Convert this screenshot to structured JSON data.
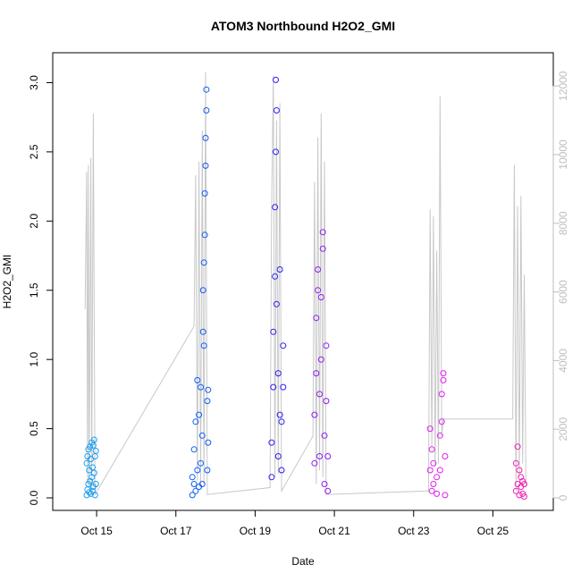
{
  "chart_data": {
    "type": "scatter",
    "title": "ATOM3 Northbound H2O2_GMI",
    "xlabel": "Date",
    "ylabel": "H2O2_GMI",
    "xlim": [
      "2017-10-14T05:00",
      "2017-10-26T05:00"
    ],
    "ylim": [
      0,
      3.1
    ],
    "x_ticks": [
      "Oct 15",
      "Oct 17",
      "Oct 19",
      "Oct 21",
      "Oct 23",
      "Oct 25"
    ],
    "x_tick_values": [
      "2017-10-15",
      "2017-10-17",
      "2017-10-19",
      "2017-10-21",
      "2017-10-23",
      "2017-10-25"
    ],
    "y_ticks": [
      "0.0",
      "0.5",
      "1.0",
      "1.5",
      "2.0",
      "2.5",
      "3.0"
    ],
    "y_tick_values": [
      0,
      0.5,
      1.0,
      1.5,
      2.0,
      2.5,
      3.0
    ],
    "y2_ticks": [
      "0",
      "2000",
      "4000",
      "6000",
      "8000",
      "10000",
      "12000"
    ],
    "y2_tick_values": [
      0,
      2000,
      4000,
      6000,
      8000,
      10000,
      12000
    ],
    "y2lim": [
      0,
      12500
    ],
    "y2_color": "#bebebe",
    "marker": "open-circle",
    "series": [
      {
        "color": "#1e9ff0",
        "points": [
          [
            "2017-10-14T18:00",
            0.02
          ],
          [
            "2017-10-14T18:00",
            0.25
          ],
          [
            "2017-10-14T18:30",
            0.06
          ],
          [
            "2017-10-14T18:30",
            0.3
          ],
          [
            "2017-10-14T19:00",
            0.1
          ],
          [
            "2017-10-14T19:00",
            0.35
          ],
          [
            "2017-10-14T19:30",
            0.04
          ],
          [
            "2017-10-14T19:30",
            0.2
          ],
          [
            "2017-10-14T20:00",
            0.12
          ],
          [
            "2017-10-14T20:00",
            0.37
          ],
          [
            "2017-10-14T20:30",
            0.03
          ],
          [
            "2017-10-14T20:30",
            0.28
          ],
          [
            "2017-10-14T21:00",
            0.15
          ],
          [
            "2017-10-14T21:00",
            0.4
          ],
          [
            "2017-10-14T21:30",
            0.05
          ],
          [
            "2017-10-14T21:30",
            0.22
          ],
          [
            "2017-10-14T22:00",
            0.08
          ],
          [
            "2017-10-14T22:00",
            0.38
          ],
          [
            "2017-10-14T22:30",
            0.18
          ],
          [
            "2017-10-14T22:30",
            0.42
          ],
          [
            "2017-10-14T23:00",
            0.02
          ],
          [
            "2017-10-14T23:00",
            0.3
          ],
          [
            "2017-10-14T23:30",
            0.1
          ],
          [
            "2017-10-14T23:30",
            0.34
          ]
        ]
      },
      {
        "color": "#0f5cf5",
        "points": [
          [
            "2017-10-17T10:00",
            0.02
          ],
          [
            "2017-10-17T10:00",
            0.15
          ],
          [
            "2017-10-17T11:00",
            0.1
          ],
          [
            "2017-10-17T11:00",
            0.35
          ],
          [
            "2017-10-17T12:00",
            0.05
          ],
          [
            "2017-10-17T12:00",
            0.55
          ],
          [
            "2017-10-17T13:00",
            0.2
          ],
          [
            "2017-10-17T13:00",
            0.85
          ],
          [
            "2017-10-17T14:00",
            0.08
          ],
          [
            "2017-10-17T14:00",
            0.6
          ],
          [
            "2017-10-17T15:00",
            0.25
          ],
          [
            "2017-10-17T15:00",
            0.8
          ],
          [
            "2017-10-17T16:00",
            0.1
          ],
          [
            "2017-10-17T16:00",
            0.45
          ],
          [
            "2017-10-17T16:30",
            1.2
          ],
          [
            "2017-10-17T16:30",
            1.5
          ],
          [
            "2017-10-17T17:00",
            1.1
          ],
          [
            "2017-10-17T17:00",
            1.7
          ],
          [
            "2017-10-17T17:30",
            1.9
          ],
          [
            "2017-10-17T17:30",
            2.2
          ],
          [
            "2017-10-17T18:00",
            2.4
          ],
          [
            "2017-10-17T18:00",
            2.6
          ],
          [
            "2017-10-17T18:30",
            2.8
          ],
          [
            "2017-10-17T18:30",
            2.95
          ],
          [
            "2017-10-17T19:00",
            0.2
          ],
          [
            "2017-10-17T19:00",
            0.7
          ],
          [
            "2017-10-17T19:30",
            0.4
          ],
          [
            "2017-10-17T19:30",
            0.78
          ]
        ]
      },
      {
        "color": "#2a1ff2",
        "points": [
          [
            "2017-10-19T10:00",
            0.15
          ],
          [
            "2017-10-19T10:00",
            0.4
          ],
          [
            "2017-10-19T11:00",
            0.8
          ],
          [
            "2017-10-19T11:00",
            1.2
          ],
          [
            "2017-10-19T12:00",
            1.6
          ],
          [
            "2017-10-19T12:00",
            2.1
          ],
          [
            "2017-10-19T12:30",
            2.5
          ],
          [
            "2017-10-19T12:30",
            3.02
          ],
          [
            "2017-10-19T13:00",
            2.8
          ],
          [
            "2017-10-19T13:00",
            1.4
          ],
          [
            "2017-10-19T14:00",
            0.9
          ],
          [
            "2017-10-19T14:00",
            0.3
          ],
          [
            "2017-10-19T15:00",
            0.6
          ],
          [
            "2017-10-19T15:00",
            1.65
          ],
          [
            "2017-10-19T16:00",
            0.2
          ],
          [
            "2017-10-19T16:00",
            0.55
          ],
          [
            "2017-10-19T17:00",
            0.8
          ],
          [
            "2017-10-19T17:00",
            1.1
          ]
        ]
      },
      {
        "color": "#8c1ef0",
        "points": [
          [
            "2017-10-20T12:00",
            0.25
          ],
          [
            "2017-10-20T12:00",
            0.6
          ],
          [
            "2017-10-20T13:00",
            0.9
          ],
          [
            "2017-10-20T13:00",
            1.3
          ],
          [
            "2017-10-20T14:00",
            1.5
          ],
          [
            "2017-10-20T14:00",
            1.65
          ],
          [
            "2017-10-20T15:00",
            0.3
          ],
          [
            "2017-10-20T15:00",
            0.75
          ],
          [
            "2017-10-20T16:00",
            1.0
          ],
          [
            "2017-10-20T16:00",
            1.45
          ],
          [
            "2017-10-20T17:00",
            1.8
          ],
          [
            "2017-10-20T17:00",
            1.92
          ],
          [
            "2017-10-20T18:00",
            0.1
          ],
          [
            "2017-10-20T18:00",
            0.45
          ],
          [
            "2017-10-20T19:00",
            0.7
          ],
          [
            "2017-10-20T19:00",
            1.1
          ],
          [
            "2017-10-20T20:00",
            0.05
          ],
          [
            "2017-10-20T20:00",
            0.3
          ]
        ]
      },
      {
        "color": "#e11ef0",
        "points": [
          [
            "2017-10-23T10:00",
            0.2
          ],
          [
            "2017-10-23T10:00",
            0.5
          ],
          [
            "2017-10-23T11:00",
            0.05
          ],
          [
            "2017-10-23T11:00",
            0.35
          ],
          [
            "2017-10-23T12:00",
            0.1
          ],
          [
            "2017-10-23T12:00",
            0.25
          ],
          [
            "2017-10-23T14:00",
            0.03
          ],
          [
            "2017-10-23T14:00",
            0.15
          ],
          [
            "2017-10-23T16:00",
            0.2
          ],
          [
            "2017-10-23T16:00",
            0.45
          ],
          [
            "2017-10-23T17:00",
            0.55
          ],
          [
            "2017-10-23T17:00",
            0.75
          ],
          [
            "2017-10-23T18:00",
            0.85
          ],
          [
            "2017-10-23T18:00",
            0.9
          ],
          [
            "2017-10-23T19:00",
            0.02
          ],
          [
            "2017-10-23T19:00",
            0.3
          ]
        ]
      },
      {
        "color": "#f21eb4",
        "points": [
          [
            "2017-10-25T14:00",
            0.05
          ],
          [
            "2017-10-25T14:00",
            0.25
          ],
          [
            "2017-10-25T15:00",
            0.1
          ],
          [
            "2017-10-25T15:00",
            0.37
          ],
          [
            "2017-10-25T16:00",
            0.02
          ],
          [
            "2017-10-25T16:00",
            0.2
          ],
          [
            "2017-10-25T17:00",
            0.08
          ],
          [
            "2017-10-25T17:00",
            0.15
          ],
          [
            "2017-10-25T18:00",
            0.03
          ],
          [
            "2017-10-25T18:00",
            0.12
          ],
          [
            "2017-10-25T19:00",
            0.01
          ],
          [
            "2017-10-25T19:00",
            0.1
          ]
        ]
      }
    ],
    "secondary_line": {
      "color": "#c8c8c8",
      "axis": "right",
      "points": [
        [
          "2017-10-14T17:00",
          5500
        ],
        [
          "2017-10-14T18:00",
          9500
        ],
        [
          "2017-10-14T18:30",
          500
        ],
        [
          "2017-10-14T19:00",
          9700
        ],
        [
          "2017-10-14T19:30",
          300
        ],
        [
          "2017-10-14T20:30",
          9900
        ],
        [
          "2017-10-14T21:00",
          200
        ],
        [
          "2017-10-14T22:00",
          11200
        ],
        [
          "2017-10-14T23:00",
          100
        ],
        [
          "2017-10-17T11:00",
          5000
        ],
        [
          "2017-10-17T12:00",
          9400
        ],
        [
          "2017-10-17T13:00",
          500
        ],
        [
          "2017-10-17T14:00",
          9800
        ],
        [
          "2017-10-17T15:00",
          300
        ],
        [
          "2017-10-17T16:00",
          10700
        ],
        [
          "2017-10-17T17:00",
          400
        ],
        [
          "2017-10-17T18:00",
          12400
        ],
        [
          "2017-10-17T19:00",
          100
        ],
        [
          "2017-10-19T09:00",
          300
        ],
        [
          "2017-10-19T10:00",
          8500
        ],
        [
          "2017-10-19T11:00",
          12300
        ],
        [
          "2017-10-19T12:00",
          600
        ],
        [
          "2017-10-19T13:00",
          11000
        ],
        [
          "2017-10-19T14:00",
          700
        ],
        [
          "2017-10-19T15:00",
          11500
        ],
        [
          "2017-10-19T16:00",
          200
        ],
        [
          "2017-10-20T11:00",
          1800
        ],
        [
          "2017-10-20T12:00",
          9200
        ],
        [
          "2017-10-20T13:00",
          400
        ],
        [
          "2017-10-20T14:00",
          10500
        ],
        [
          "2017-10-20T15:00",
          800
        ],
        [
          "2017-10-20T16:00",
          11200
        ],
        [
          "2017-10-20T17:00",
          600
        ],
        [
          "2017-10-20T18:00",
          9800
        ],
        [
          "2017-10-20T19:00",
          100
        ],
        [
          "2017-10-23T09:00",
          200
        ],
        [
          "2017-10-23T10:00",
          8400
        ],
        [
          "2017-10-23T11:00",
          1500
        ],
        [
          "2017-10-23T12:00",
          8200
        ],
        [
          "2017-10-23T13:00",
          900
        ],
        [
          "2017-10-23T14:00",
          7200
        ],
        [
          "2017-10-23T15:00",
          1000
        ],
        [
          "2017-10-23T16:00",
          11700
        ],
        [
          "2017-10-23T17:00",
          1800
        ],
        [
          "2017-10-23T18:00",
          2300
        ],
        [
          "2017-10-25T12:00",
          2300
        ],
        [
          "2017-10-25T13:00",
          9700
        ],
        [
          "2017-10-25T14:00",
          200
        ],
        [
          "2017-10-25T15:00",
          8500
        ],
        [
          "2017-10-25T16:00",
          600
        ],
        [
          "2017-10-25T17:00",
          8800
        ],
        [
          "2017-10-25T18:00",
          1000
        ],
        [
          "2017-10-25T19:00",
          6500
        ],
        [
          "2017-10-25T20:00",
          300
        ]
      ]
    },
    "grid": false,
    "legend": "none"
  }
}
